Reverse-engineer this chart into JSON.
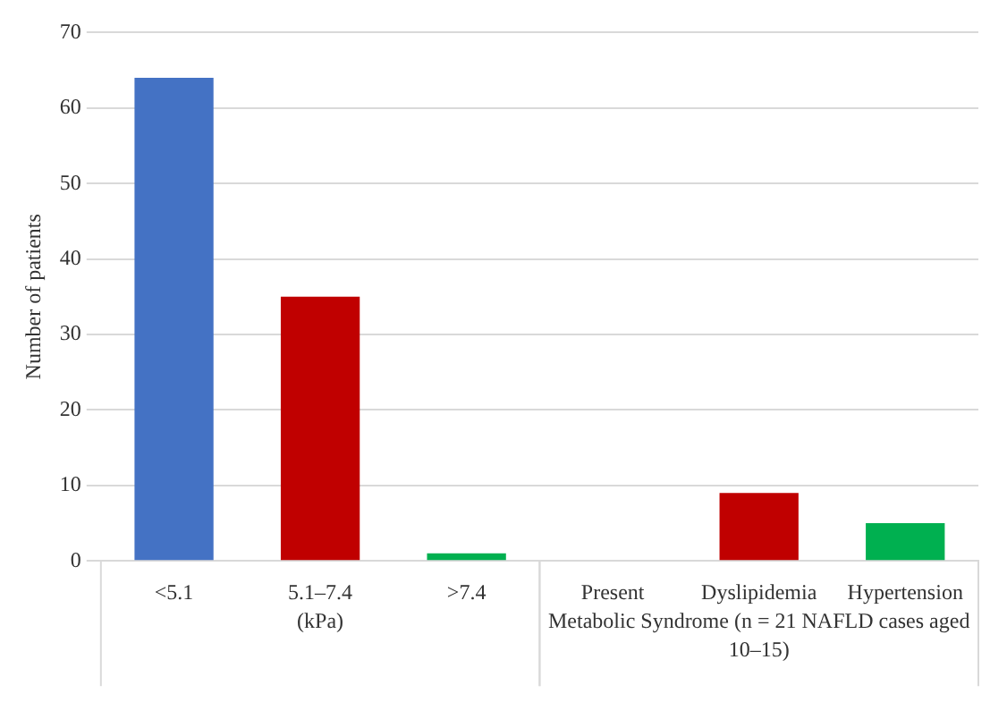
{
  "chart_data": {
    "type": "bar",
    "ylabel": "Number of patients",
    "categories": [
      "<5.1",
      "5.1–7.4",
      ">7.4",
      "Present",
      "Dyslipidemia",
      "Hypertension"
    ],
    "values": [
      64,
      35,
      1,
      0,
      9,
      5
    ],
    "colors": [
      "#4472c4",
      "#c00000",
      "#00b050",
      "#4472c4",
      "#c00000",
      "#00b050"
    ],
    "ylim": [
      0,
      70
    ],
    "yticks": [
      0,
      10,
      20,
      30,
      40,
      50,
      60,
      70
    ],
    "grid": "y",
    "annotations": [
      "(kPa)",
      "Metabolic Syndrome (n = 21 NAFLD cases aged 10–15)"
    ]
  }
}
